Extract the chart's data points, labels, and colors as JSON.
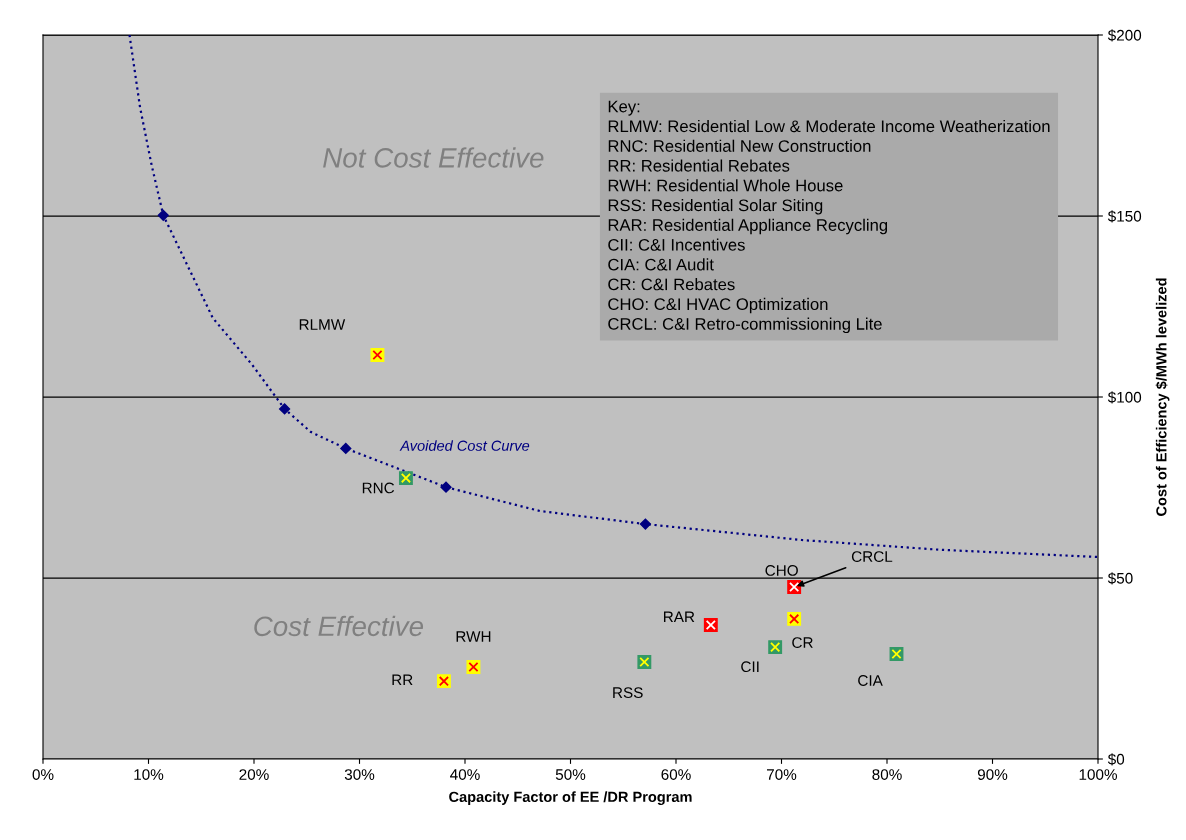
{
  "chart_data": {
    "type": "scatter",
    "xlabel": "Capacity Factor of EE /DR Program",
    "ylabel": "Cost of Efficiency $/MWh levelized",
    "xlim": [
      0,
      100
    ],
    "xticks": [
      {
        "value": 0,
        "label": "0%"
      },
      {
        "value": 10,
        "label": "10%"
      },
      {
        "value": 20,
        "label": "20%"
      },
      {
        "value": 30,
        "label": "30%"
      },
      {
        "value": 40,
        "label": "40%"
      },
      {
        "value": 50,
        "label": "50%"
      },
      {
        "value": 60,
        "label": "60%"
      },
      {
        "value": 70,
        "label": "70%"
      },
      {
        "value": 80,
        "label": "80%"
      },
      {
        "value": 90,
        "label": "90%"
      },
      {
        "value": 100,
        "label": "100%"
      }
    ],
    "ylim": [
      0,
      200
    ],
    "yticks": [
      {
        "value": 0,
        "label": "$0"
      },
      {
        "value": 50,
        "label": "$50"
      },
      {
        "value": 100,
        "label": "$100"
      },
      {
        "value": 150,
        "label": "$150"
      },
      {
        "value": 200,
        "label": "$200"
      }
    ],
    "grid": "y",
    "series": [
      {
        "type": "line",
        "color": "#000080",
        "line_style": "dotted",
        "marker": "none",
        "x": [
          8.2,
          9.2,
          10.3,
          11.4,
          16.1,
          19.8,
          22.9,
          25.4,
          28.7,
          38.2,
          47.1,
          57.1,
          71.9,
          85.0,
          100
        ],
        "values": [
          200,
          180,
          164,
          150.2,
          121.8,
          109,
          96.7,
          90.3,
          85.8,
          75.1,
          68.5,
          64.9,
          60.5,
          57.8,
          55.8
        ]
      },
      {
        "type": "scatter",
        "color": "#000080",
        "marker": "diamond",
        "x": [
          11.4,
          22.9,
          28.7,
          38.2,
          57.1
        ],
        "values": [
          150.2,
          96.7,
          85.8,
          75.1,
          64.9
        ]
      },
      {
        "type": "scatter",
        "color": "#ffff00",
        "marker": "square",
        "x": [
          31.7,
          38.0,
          40.8,
          71.2
        ],
        "values": [
          111.6,
          21.5,
          25.4,
          38.7
        ]
      },
      {
        "type": "scatter",
        "color": "#339966",
        "marker": "square",
        "x": [
          34.4,
          57.0,
          69.4,
          80.9
        ],
        "values": [
          77.6,
          26.8,
          30.9,
          29.0
        ]
      },
      {
        "type": "scatter",
        "color": "#ff0000",
        "marker": "square",
        "x": [
          63.3,
          71.2
        ],
        "values": [
          37.0,
          47.5
        ]
      }
    ],
    "annotations": [
      "Not Cost Effective",
      "Cost Effective",
      "Key:\nRLMW: Residential Low & Moderate Income Weatherization\nRNC: Residential New Construction\nRR: Residential Rebates\nRWH: Residential Whole House\nRSS: Residential Solar Siting\nRAR: Residential Appliance Recycling\nCII: C&I Incentives\nCIA: C&I Audit\nCR: C&I Rebates\nCHO: C&I HVAC Optimization\nCRCL: C&I Retro-commissioning Lite",
      "Avoided Cost Curve",
      {
        "text": "RLMW",
        "x": 31.7,
        "y": 111.6
      },
      {
        "text": "RNC",
        "x": 34.4,
        "y": 77.6
      },
      {
        "text": "RR",
        "x": 38.0,
        "y": 21.5
      },
      {
        "text": "RWH",
        "x": 40.8,
        "y": 25.4
      },
      {
        "text": "RSS",
        "x": 57.0,
        "y": 26.8
      },
      {
        "text": "RAR",
        "x": 63.3,
        "y": 37.0
      },
      {
        "text": "CHO",
        "x": 71.2,
        "y": 47.5
      },
      {
        "text": "CRCL",
        "x": 71.2,
        "y": 47.5
      },
      {
        "text": "CR",
        "x": 71.2,
        "y": 38.7
      },
      {
        "text": "CII",
        "x": 69.4,
        "y": 30.9
      },
      {
        "text": "CIA",
        "x": 80.9,
        "y": 29.0
      }
    ]
  }
}
